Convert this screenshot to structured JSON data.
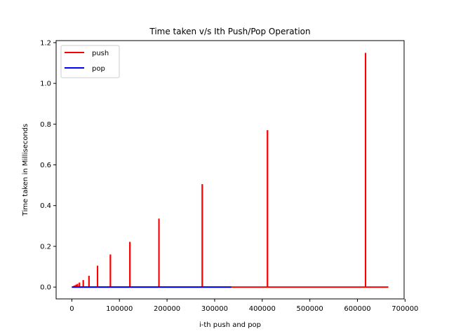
{
  "chart_data": {
    "type": "line",
    "title": "Time taken v/s Ith Push/Pop Operation",
    "xlabel": "i-th push and pop",
    "ylabel": "Time taken in Milliseconds",
    "xlim": [
      -33000,
      698000
    ],
    "ylim": [
      -0.058,
      1.21
    ],
    "x_ticks": [
      0,
      100000,
      200000,
      300000,
      400000,
      500000,
      600000,
      700000
    ],
    "x_tick_labels": [
      "0",
      "100000",
      "200000",
      "300000",
      "400000",
      "500000",
      "600000",
      "700000"
    ],
    "y_ticks": [
      0.0,
      0.2,
      0.4,
      0.6,
      0.8,
      1.0,
      1.2
    ],
    "y_tick_labels": [
      "0.0",
      "0.2",
      "0.4",
      "0.6",
      "0.8",
      "1.0",
      "1.2"
    ],
    "grid": false,
    "legend_position": "top-left",
    "series": [
      {
        "name": "push",
        "color": "#ff0000",
        "x_range": [
          0,
          665000
        ],
        "baseline": 0.0,
        "spikes": [
          {
            "x": 2000,
            "y": 0.002
          },
          {
            "x": 4000,
            "y": 0.005
          },
          {
            "x": 6000,
            "y": 0.008
          },
          {
            "x": 9000,
            "y": 0.012
          },
          {
            "x": 12000,
            "y": 0.016
          },
          {
            "x": 16000,
            "y": 0.022
          },
          {
            "x": 24000,
            "y": 0.034
          },
          {
            "x": 36000,
            "y": 0.055
          },
          {
            "x": 54000,
            "y": 0.105
          },
          {
            "x": 81000,
            "y": 0.16
          },
          {
            "x": 122000,
            "y": 0.222
          },
          {
            "x": 183000,
            "y": 0.336
          },
          {
            "x": 274000,
            "y": 0.505
          },
          {
            "x": 411000,
            "y": 0.77
          },
          {
            "x": 617000,
            "y": 1.15
          }
        ]
      },
      {
        "name": "pop",
        "color": "#0000ff",
        "x_range": [
          0,
          335000
        ],
        "baseline": 0.0,
        "spikes": []
      }
    ]
  }
}
